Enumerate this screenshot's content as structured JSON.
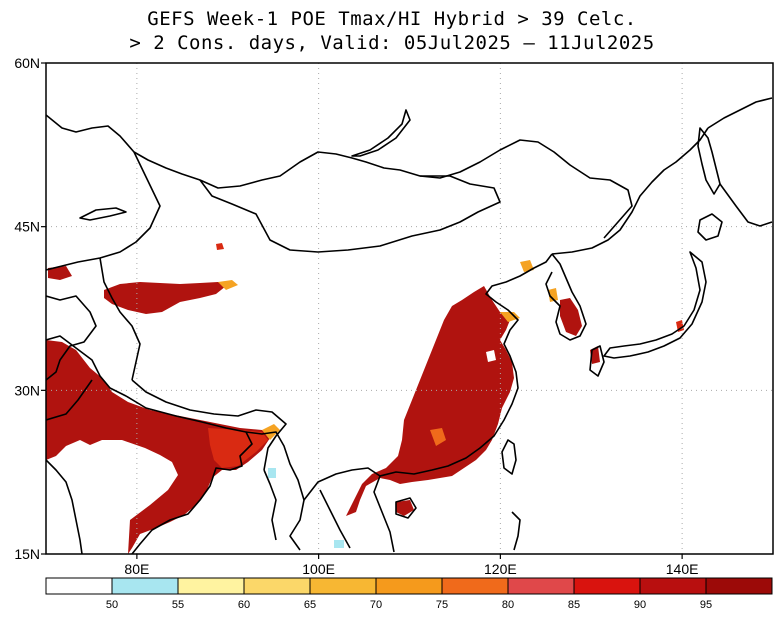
{
  "title": {
    "line1": "GEFS Week-1 POE Tmax/HI Hybrid > 39 Celc.",
    "line2": "> 2 Cons. days, Valid: 05Jul2025 – 11Jul2025"
  },
  "map": {
    "lon_range": [
      70,
      150
    ],
    "lat_range": [
      15,
      60
    ],
    "lat_ticks": [
      {
        "value": 60,
        "label": "60N"
      },
      {
        "value": 45,
        "label": "45N"
      },
      {
        "value": 30,
        "label": "30N"
      },
      {
        "value": 15,
        "label": "15N"
      }
    ],
    "lon_ticks": [
      {
        "value": 80,
        "label": "80E"
      },
      {
        "value": 100,
        "label": "100E"
      },
      {
        "value": 120,
        "label": "120E"
      },
      {
        "value": 140,
        "label": "140E"
      }
    ],
    "grid": "dotted"
  },
  "colorbar": {
    "labels": [
      "50",
      "55",
      "60",
      "65",
      "70",
      "75",
      "80",
      "85",
      "90",
      "95"
    ],
    "colors": [
      "#ffffff",
      "#a8e6f0",
      "#fff3a0",
      "#fbd769",
      "#f7b733",
      "#f59a1c",
      "#f06a1b",
      "#e0484a",
      "#d9130e",
      "#b80f0f",
      "#9c0a08"
    ]
  },
  "shading": {
    "colors": {
      "core": "#b0130f",
      "edge": "#d92a12",
      "fringe": "#f5a323",
      "light": "#a8e6f0"
    }
  }
}
